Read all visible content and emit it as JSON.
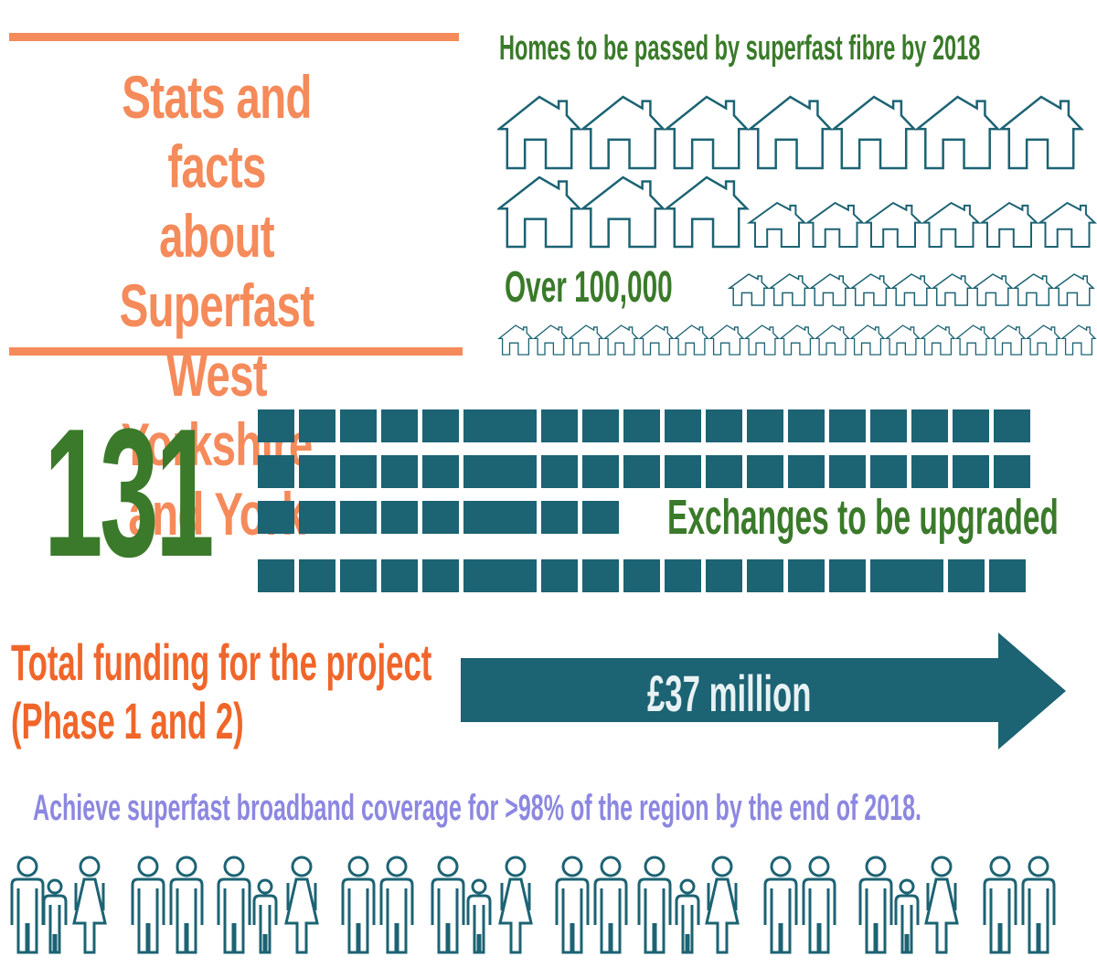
{
  "title": {
    "text": "Stats and facts\nabout Superfast\nWest Yorkshire\nand York"
  },
  "homes": {
    "heading": "Homes to be passed by superfast fibre by 2018",
    "count": "Over 100,000",
    "icon": "house-outline-icon"
  },
  "exchanges": {
    "number": "131",
    "label": "Exchanges to be upgraded",
    "icon": "exchange-block-icon"
  },
  "funding": {
    "label": "Total funding for the project\n(Phase 1 and 2)",
    "amount": "£37 million",
    "icon": "arrow-right-icon"
  },
  "coverage": {
    "text": "Achieve superfast broadband coverage for >98% of the region by the end of 2018.",
    "icon": "person-outline-icon"
  },
  "colors": {
    "orange_accent": "#f58a5a",
    "orange_text": "#f0662a",
    "green_text": "#3a7a2a",
    "teal": "#1c6373",
    "purple_text": "#8c87e0"
  }
}
